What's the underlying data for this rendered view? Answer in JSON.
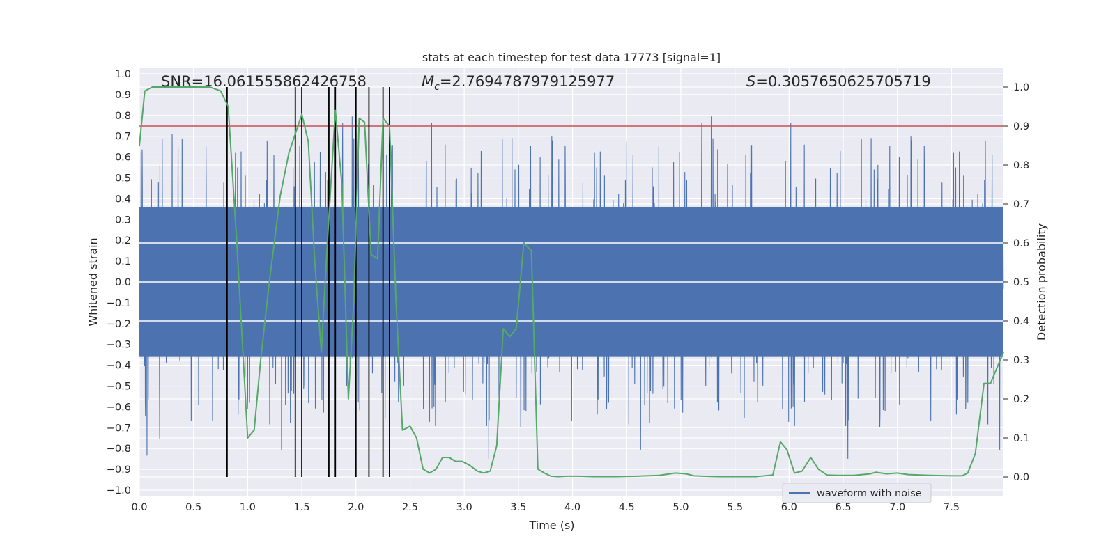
{
  "chart_data": {
    "type": "line",
    "title": "stats at each timestep for test data 17773 [signal=1]",
    "xlabel": "Time (s)",
    "ylabel_left": "Whitened strain",
    "ylabel_right": "Detection probability",
    "xlim": [
      0.0,
      7.98
    ],
    "ylim_left": [
      -1.03,
      1.03
    ],
    "ylim_right": [
      -0.05,
      1.05
    ],
    "x_ticks": [
      0.0,
      0.5,
      1.0,
      1.5,
      2.0,
      2.5,
      3.0,
      3.5,
      4.0,
      4.5,
      5.0,
      5.5,
      6.0,
      6.5,
      7.0,
      7.5
    ],
    "x_tick_labels": [
      "0.0",
      "0.5",
      "1.0",
      "1.5",
      "2.0",
      "2.5",
      "3.0",
      "3.5",
      "4.0",
      "4.5",
      "5.0",
      "5.5",
      "6.0",
      "6.5",
      "7.0",
      "7.5"
    ],
    "y_left_ticks": [
      1.0,
      0.9,
      0.8,
      0.7,
      0.6,
      0.5,
      0.4,
      0.3,
      0.2,
      0.1,
      0.0,
      -0.1,
      -0.2,
      -0.3,
      -0.4,
      -0.5,
      -0.6,
      -0.7,
      -0.8,
      -0.9,
      -1.0
    ],
    "y_left_tick_labels": [
      "1.0",
      "0.9",
      "0.8",
      "0.7",
      "0.6",
      "0.5",
      "0.4",
      "0.3",
      "0.2",
      "0.1",
      "0.0",
      "−0.1",
      "−0.2",
      "−0.3",
      "−0.4",
      "−0.5",
      "−0.6",
      "−0.7",
      "−0.8",
      "−0.9",
      "−1.0"
    ],
    "y_right_ticks": [
      1.0,
      0.9,
      0.8,
      0.7,
      0.6,
      0.5,
      0.4,
      0.3,
      0.2,
      0.1,
      0.0
    ],
    "y_right_tick_labels": [
      "1.0",
      "0.9",
      "0.8",
      "0.7",
      "0.6",
      "0.5",
      "0.4",
      "0.3",
      "0.2",
      "0.1",
      "0.0"
    ],
    "annotations": {
      "snr": "SNR=16.061555862426758",
      "mc_prefix": "M",
      "mc_sub": "c",
      "mc_value": "=2.7694787979125977",
      "s_prefix": "S",
      "s_value": "=0.3057650625705719"
    },
    "legend": {
      "label": "waveform with noise",
      "location": "lower-right"
    },
    "threshold_right": 0.9,
    "detection_times": [
      0.81,
      1.44,
      1.5,
      1.75,
      1.81,
      2.0,
      2.12,
      2.25,
      2.31
    ],
    "waveform": {
      "name": "waveform with noise",
      "sample_rate": 512,
      "core_amplitude": 0.36,
      "spike_max": 1.0,
      "spike_min": -0.92
    },
    "probability": {
      "x": [
        0.0,
        0.05,
        0.12,
        0.25,
        0.5,
        0.65,
        0.75,
        0.82,
        0.9,
        0.96,
        1.0,
        1.06,
        1.12,
        1.2,
        1.3,
        1.38,
        1.44,
        1.5,
        1.56,
        1.62,
        1.68,
        1.74,
        1.81,
        1.87,
        1.93,
        1.98,
        2.03,
        2.08,
        2.14,
        2.2,
        2.25,
        2.31,
        2.37,
        2.43,
        2.5,
        2.56,
        2.62,
        2.68,
        2.74,
        2.8,
        2.86,
        2.92,
        2.98,
        3.05,
        3.12,
        3.18,
        3.24,
        3.3,
        3.36,
        3.42,
        3.48,
        3.55,
        3.62,
        3.68,
        3.74,
        3.8,
        3.87,
        3.95,
        4.05,
        4.2,
        4.4,
        4.6,
        4.8,
        4.95,
        5.05,
        5.12,
        5.2,
        5.35,
        5.5,
        5.7,
        5.85,
        5.92,
        5.98,
        6.05,
        6.12,
        6.2,
        6.27,
        6.35,
        6.45,
        6.6,
        6.75,
        6.8,
        6.9,
        7.0,
        7.1,
        7.3,
        7.5,
        7.6,
        7.65,
        7.72,
        7.8,
        7.86,
        7.92,
        7.98
      ],
      "y": [
        0.85,
        0.99,
        1.0,
        1.0,
        1.0,
        1.0,
        0.99,
        0.95,
        0.6,
        0.3,
        0.1,
        0.12,
        0.3,
        0.5,
        0.72,
        0.83,
        0.88,
        0.93,
        0.86,
        0.55,
        0.32,
        0.62,
        0.94,
        0.75,
        0.2,
        0.45,
        0.92,
        0.91,
        0.57,
        0.56,
        0.92,
        0.9,
        0.45,
        0.12,
        0.13,
        0.1,
        0.02,
        0.01,
        0.02,
        0.05,
        0.05,
        0.04,
        0.04,
        0.03,
        0.015,
        0.01,
        0.015,
        0.08,
        0.38,
        0.36,
        0.38,
        0.6,
        0.58,
        0.02,
        0.01,
        0.002,
        0.001,
        0.002,
        0.002,
        0.001,
        0.001,
        0.002,
        0.004,
        0.01,
        0.008,
        0.003,
        0.002,
        0.001,
        0.001,
        0.001,
        0.005,
        0.09,
        0.07,
        0.01,
        0.015,
        0.05,
        0.02,
        0.005,
        0.004,
        0.004,
        0.008,
        0.012,
        0.008,
        0.01,
        0.006,
        0.004,
        0.003,
        0.003,
        0.01,
        0.06,
        0.24,
        0.24,
        0.28,
        0.32
      ]
    }
  }
}
